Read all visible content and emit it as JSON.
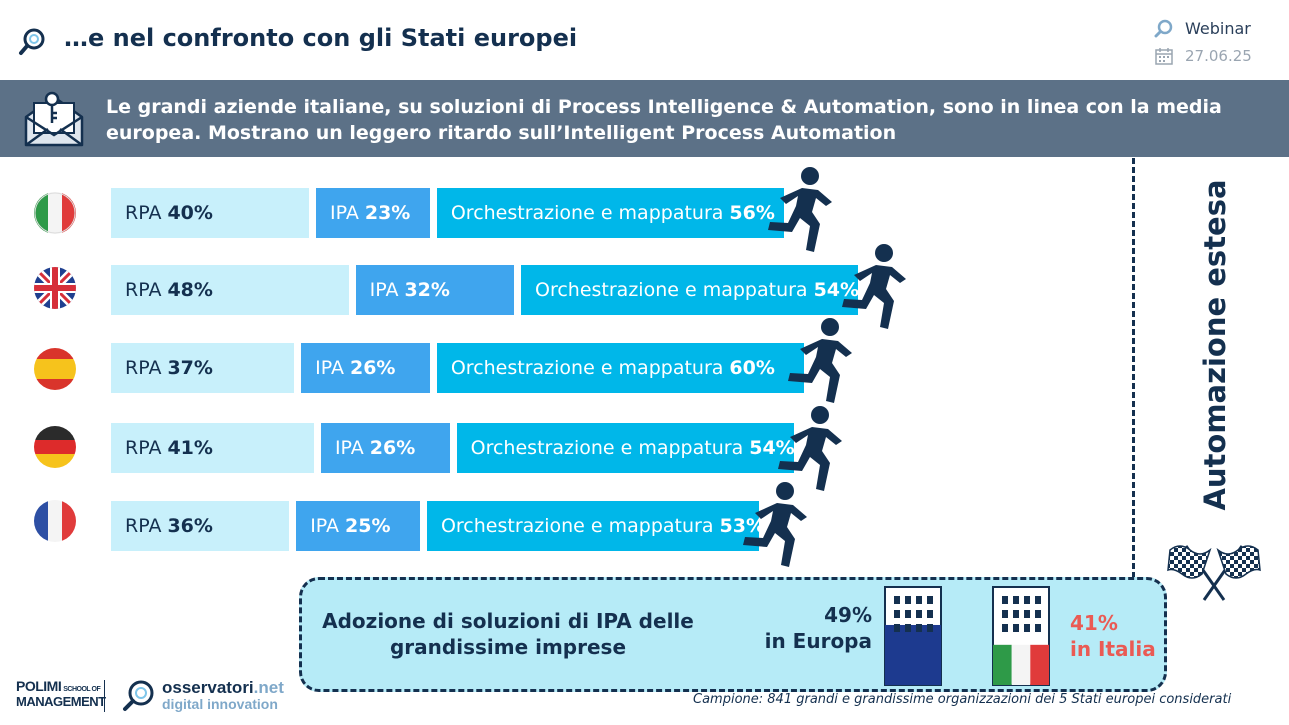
{
  "header": {
    "title": "…e nel confronto con gli Stati europei",
    "event": "Webinar",
    "date": "27.06.25"
  },
  "banner": {
    "text": "Le grandi aziende italiane, su soluzioni di Process Intelligence & Automation, sono in linea con la media europea. Mostrano un leggero ritardo sull’Intelligent Process Automation"
  },
  "chart_data": {
    "type": "bar",
    "categories": [
      "Italia",
      "Regno Unito",
      "Spagna",
      "Germania",
      "Francia"
    ],
    "series": [
      {
        "name": "RPA",
        "values": [
          40,
          48,
          37,
          41,
          36
        ]
      },
      {
        "name": "IPA",
        "values": [
          23,
          32,
          26,
          26,
          25
        ]
      },
      {
        "name": "Orchestrazione e mappatura",
        "values": [
          56,
          54,
          60,
          54,
          53
        ]
      }
    ],
    "rows": [
      {
        "rpa_label": "RPA",
        "rpa_value": "40%",
        "ipa_label": "IPA",
        "ipa_value": "23%",
        "orch_label": "Orchestrazione e mappatura",
        "orch_value": "56%"
      },
      {
        "rpa_label": "RPA",
        "rpa_value": "48%",
        "ipa_label": "IPA",
        "ipa_value": "32%",
        "orch_label": "Orchestrazione e mappatura",
        "orch_value": "54%"
      },
      {
        "rpa_label": "RPA",
        "rpa_value": "37%",
        "ipa_label": "IPA",
        "ipa_value": "26%",
        "orch_label": "Orchestrazione e mappatura",
        "orch_value": "60%"
      },
      {
        "rpa_label": "RPA",
        "rpa_value": "41%",
        "ipa_label": "IPA",
        "ipa_value": "26%",
        "orch_label": "Orchestrazione e mappatura",
        "orch_value": "54%"
      },
      {
        "rpa_label": "RPA",
        "rpa_value": "36%",
        "ipa_label": "IPA",
        "ipa_value": "25%",
        "orch_label": "Orchestrazione e mappatura",
        "orch_value": "53%"
      }
    ],
    "colors": {
      "rpa": "#c8f0fb",
      "ipa": "#3fa5ee",
      "orch": "#00b7e9"
    },
    "finish_label": "Automazione estesa",
    "ipa_adoption": {
      "title": "Adozione di soluzioni di IPA delle grandissime imprese",
      "europe": {
        "value": "49%",
        "label": "in Europa",
        "fill": 0.49
      },
      "italy": {
        "value": "41%",
        "label": "in Italia",
        "fill": 0.41
      }
    }
  },
  "footer": {
    "source": "Campione: 841 grandi e grandissime organizzazioni dei 5 Stati europei considerati",
    "logo_polimi_1": "POLIMI",
    "logo_polimi_school": "SCHOOL OF",
    "logo_polimi_2": "MANAGEMENT",
    "logo_oss_name": "osservatori",
    "logo_oss_tld": ".net",
    "logo_oss_sub": "digital innovation"
  }
}
